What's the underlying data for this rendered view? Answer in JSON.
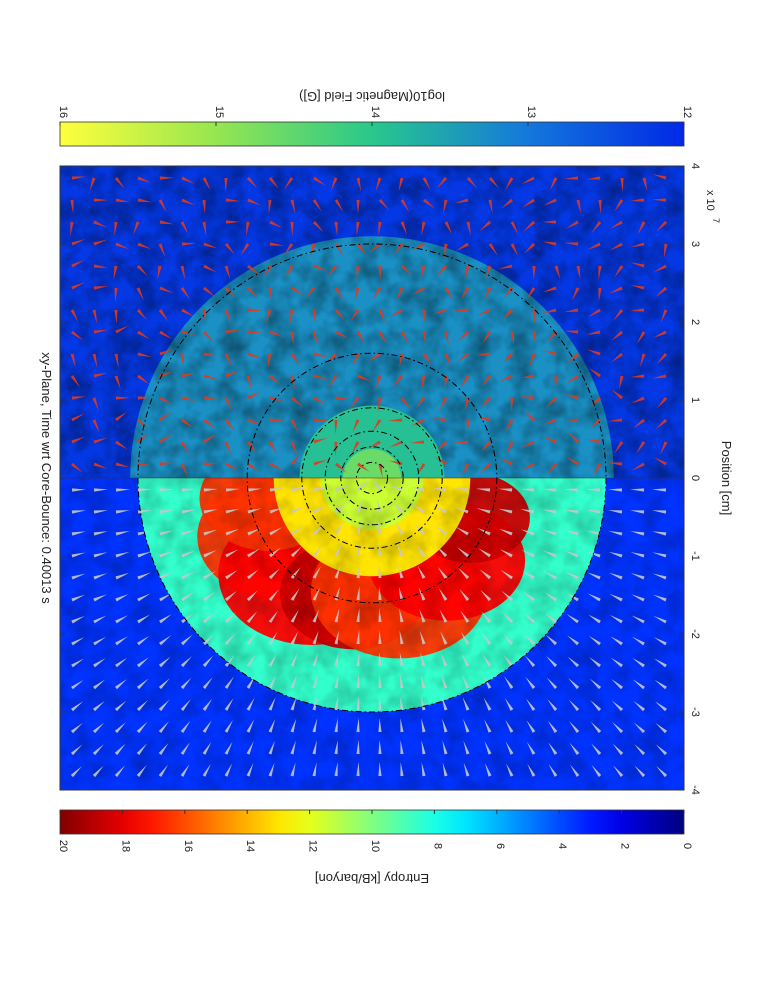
{
  "chart_data": {
    "type": "heatmap",
    "orientation": "rotated-90-clockwise",
    "title": "xy-Plane, Time wrt Core-Bounce: 0.40013 s",
    "xlabel": "Position [cm]",
    "x_multiplier_label": "x 10",
    "x_multiplier_exp": "7",
    "xlim": [
      -4,
      4
    ],
    "ylim": [
      -4,
      4
    ],
    "x_ticks": [
      -4,
      -3,
      -2,
      -1,
      0,
      1,
      2,
      3,
      4
    ],
    "grid": false,
    "panels": [
      {
        "name": "entropy",
        "x_range": [
          -4,
          0
        ],
        "colorbar_label": "Entropy [kB/baryon]",
        "colorbar_ticks": [
          0,
          2,
          4,
          6,
          8,
          10,
          12,
          14,
          16,
          18,
          20
        ],
        "clim": [
          0,
          20
        ],
        "colormap": "jet",
        "vector_color": "#c8c8c8",
        "shock_radius": 3.0,
        "background_value": 3.5,
        "colorbar_position": "top"
      },
      {
        "name": "magnetic-field",
        "x_range": [
          0,
          4
        ],
        "colorbar_label": "log10(Magnetic Field [G])",
        "colorbar_ticks": [
          12,
          13,
          14,
          15,
          16
        ],
        "clim": [
          12,
          16
        ],
        "colormap": "winter-yellow",
        "vector_color": "#e03a1e",
        "shock_radius": 3.1,
        "background_value": 12.2,
        "colorbar_position": "bottom"
      }
    ],
    "contours": {
      "style": "dash-dot",
      "color": "#000000",
      "radii": [
        0.2,
        0.4,
        0.6,
        0.9,
        1.6,
        3.0
      ]
    }
  }
}
